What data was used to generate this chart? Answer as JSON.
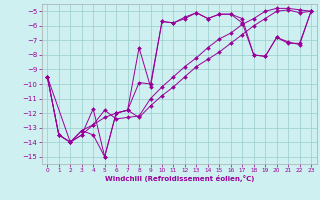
{
  "xlabel": "Windchill (Refroidissement éolien,°C)",
  "bg_color": "#cef0f0",
  "grid_color": "#99cccc",
  "line_color": "#990099",
  "xlim": [
    -0.5,
    23.5
  ],
  "ylim": [
    -15.5,
    -4.5
  ],
  "yticks": [
    -15,
    -14,
    -13,
    -12,
    -11,
    -10,
    -9,
    -8,
    -7,
    -6,
    -5
  ],
  "xticks": [
    0,
    1,
    2,
    3,
    4,
    5,
    6,
    7,
    8,
    9,
    10,
    11,
    12,
    13,
    14,
    15,
    16,
    17,
    18,
    19,
    20,
    21,
    22,
    23
  ],
  "series1_x": [
    0,
    1,
    2,
    3,
    4,
    5,
    6,
    7,
    8,
    9,
    10,
    11,
    12,
    13,
    14,
    15,
    16,
    17,
    18,
    19,
    20,
    21,
    22,
    23
  ],
  "series1_y": [
    -9.5,
    -13.5,
    -14.0,
    -13.5,
    -11.7,
    -15.0,
    -12.0,
    -11.8,
    -9.9,
    -10.0,
    -5.7,
    -5.8,
    -5.4,
    -5.1,
    -5.5,
    -5.2,
    -5.2,
    -5.5,
    -8.0,
    -8.1,
    -6.8,
    -7.2,
    -7.2,
    -5.0
  ],
  "series2_x": [
    0,
    1,
    2,
    3,
    4,
    5,
    6,
    7,
    8,
    9,
    10,
    11,
    12,
    13,
    14,
    15,
    16,
    17,
    18,
    19,
    20,
    21,
    22,
    23
  ],
  "series2_y": [
    -9.5,
    -13.5,
    -14.0,
    -13.2,
    -12.8,
    -11.8,
    -12.4,
    -12.3,
    -12.2,
    -11.0,
    -10.2,
    -9.5,
    -8.8,
    -8.2,
    -7.5,
    -6.9,
    -6.5,
    -5.9,
    -5.5,
    -5.0,
    -4.8,
    -4.8,
    -4.9,
    -5.0
  ],
  "series3_x": [
    0,
    1,
    2,
    3,
    4,
    5,
    6,
    7,
    8,
    9,
    10,
    11,
    12,
    13,
    14,
    15,
    16,
    17,
    18,
    19,
    20,
    21,
    22,
    23
  ],
  "series3_y": [
    -9.5,
    -13.5,
    -14.0,
    -13.5,
    -12.8,
    -12.3,
    -12.0,
    -11.8,
    -12.3,
    -11.5,
    -10.8,
    -10.2,
    -9.5,
    -8.8,
    -8.3,
    -7.8,
    -7.2,
    -6.6,
    -6.0,
    -5.5,
    -5.0,
    -4.9,
    -5.1,
    -5.0
  ],
  "series4_x": [
    0,
    2,
    3,
    4,
    5,
    6,
    7,
    8,
    9,
    10,
    11,
    12,
    13,
    14,
    15,
    16,
    17,
    18,
    19,
    20,
    21,
    22,
    23
  ],
  "series4_y": [
    -9.5,
    -14.0,
    -13.2,
    -13.5,
    -15.0,
    -12.0,
    -11.8,
    -7.5,
    -10.2,
    -5.7,
    -5.8,
    -5.5,
    -5.1,
    -5.5,
    -5.2,
    -5.2,
    -5.8,
    -8.0,
    -8.1,
    -6.8,
    -7.1,
    -7.3,
    -5.0
  ]
}
